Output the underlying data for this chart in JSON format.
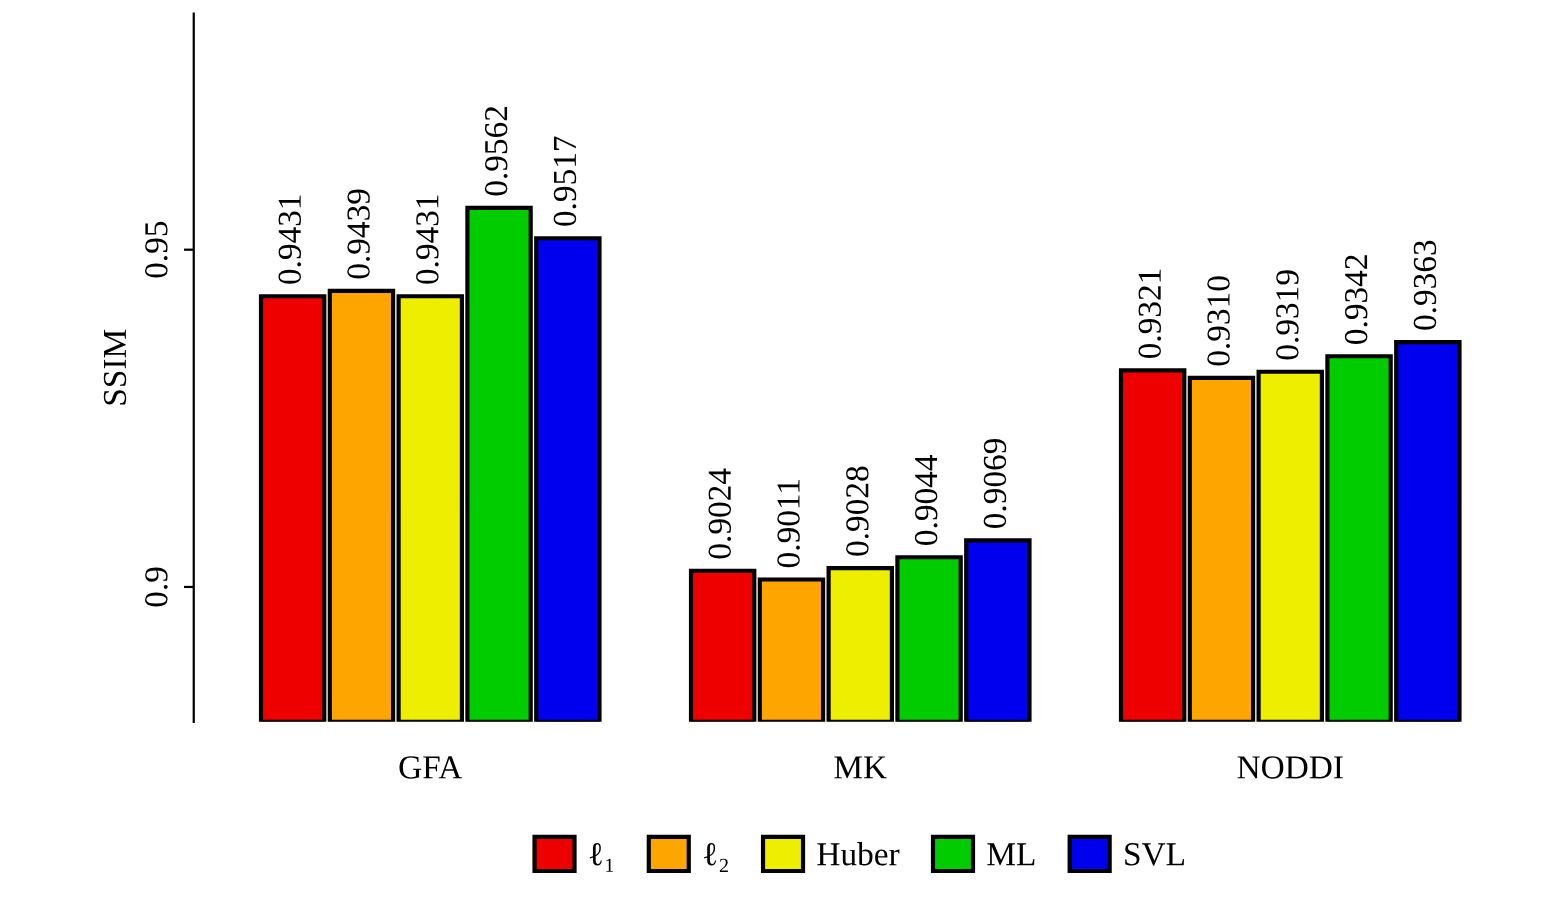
{
  "chart_data": {
    "type": "bar",
    "ylabel": "SSIM",
    "categories": [
      "GFA",
      "MK",
      "NODDI"
    ],
    "series": [
      {
        "name": "ℓ₁",
        "color": "#ee0000",
        "values": [
          0.9431,
          0.9024,
          0.9321
        ],
        "value_labels": [
          "0.9431",
          "0.9024",
          "0.9321"
        ]
      },
      {
        "name": "ℓ₂",
        "color": "#ffa500",
        "values": [
          0.9439,
          0.9011,
          0.931
        ],
        "value_labels": [
          "0.9439",
          "0.9011",
          "0.9310"
        ]
      },
      {
        "name": "Huber",
        "color": "#eeee00",
        "values": [
          0.9431,
          0.9028,
          0.9319
        ],
        "value_labels": [
          "0.9431",
          "0.9028",
          "0.9319"
        ]
      },
      {
        "name": "ML",
        "color": "#00cc00",
        "values": [
          0.9562,
          0.9044,
          0.9342
        ],
        "value_labels": [
          "0.9562",
          "0.9044",
          "0.9342"
        ]
      },
      {
        "name": "SVL",
        "color": "#0000ee",
        "values": [
          0.9517,
          0.9069,
          0.9363
        ],
        "value_labels": [
          "0.9517",
          "0.9069",
          "0.9363"
        ]
      }
    ],
    "ylim": [
      0.88,
      0.985
    ],
    "yticks": [
      {
        "value": 0.9,
        "label": "0.9"
      },
      {
        "value": 0.95,
        "label": "0.95"
      }
    ],
    "legend": "bottom",
    "grid": false
  }
}
